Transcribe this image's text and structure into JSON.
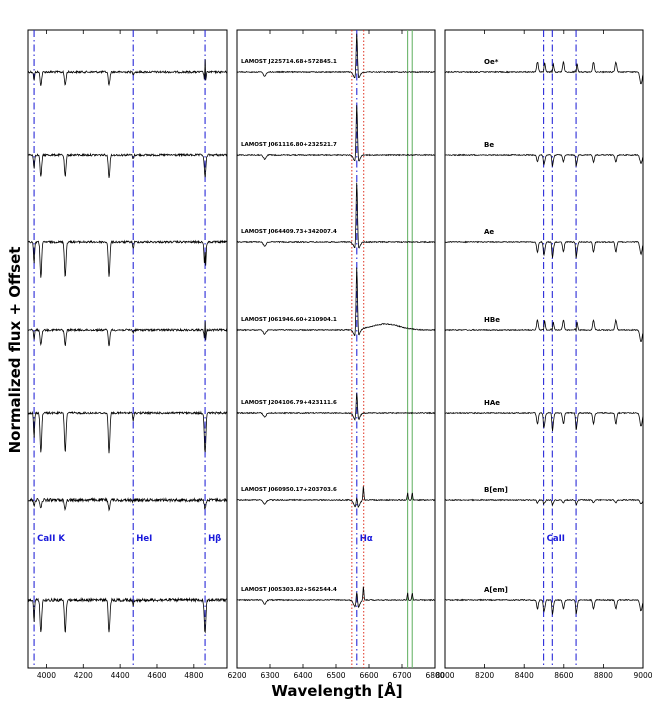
{
  "chart_data": {
    "type": "line",
    "ylabel": "Normalized flux + Offset",
    "xlabel": "Wavelength [Å]",
    "panels": [
      {
        "name": "blue",
        "xlim": [
          3900,
          4980
        ],
        "ticks": [
          4000,
          4200,
          4400,
          4600,
          4800
        ],
        "lines": [
          {
            "label": "CaII K",
            "x": 3933,
            "style": "blue-dashdot"
          },
          {
            "label": "HeI",
            "x": 4471,
            "style": "blue-dashdot"
          },
          {
            "label": "Hβ",
            "x": 4861,
            "style": "blue-dashdot"
          }
        ]
      },
      {
        "name": "halpha",
        "xlim": [
          6200,
          6800
        ],
        "ticks": [
          6200,
          6300,
          6400,
          6500,
          6600,
          6700,
          6800
        ],
        "lines": [
          {
            "label": "Hα",
            "x": 6563,
            "style": "blue-dashdot"
          },
          {
            "label": "",
            "x": 6548,
            "style": "red-dotted"
          },
          {
            "label": "",
            "x": 6584,
            "style": "red-dotted"
          },
          {
            "label": "",
            "x": 6717,
            "style": "green-solid"
          },
          {
            "label": "",
            "x": 6731,
            "style": "green-solid"
          }
        ],
        "objects": [
          "LAMOST J225714.68+572845.1",
          "LAMOST J061116.80+232521.7",
          "LAMOST J064409.73+342007.4",
          "LAMOST J061946.60+210904.1",
          "LAMOST J204106.79+423111.6",
          "LAMOST J060950.17+203703.6",
          "LAMOST J005303.82+562544.4"
        ]
      },
      {
        "name": "red",
        "xlim": [
          8000,
          9000
        ],
        "ticks": [
          8000,
          8200,
          8400,
          8600,
          8800,
          9000
        ],
        "lines": [
          {
            "label": "CaII",
            "x": 8498,
            "style": "blue-dashdot"
          },
          {
            "label": "",
            "x": 8542,
            "style": "blue-dashdot"
          },
          {
            "label": "",
            "x": 8662,
            "style": "blue-dashdot"
          }
        ],
        "classes": [
          "Oe*",
          "Be",
          "Ae",
          "HBe",
          "HAe",
          "B[em]",
          "A[em]"
        ]
      }
    ]
  }
}
